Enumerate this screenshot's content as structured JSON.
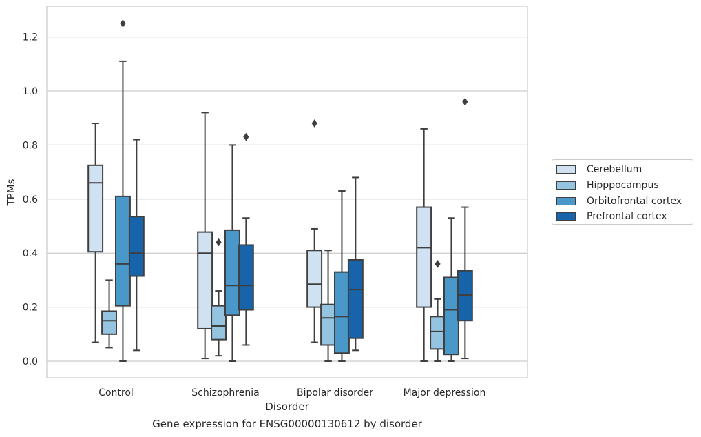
{
  "caption": "Gene expression for ENSG00000130612 by disorder",
  "chart_data": {
    "type": "boxplot",
    "xlabel": "Disorder",
    "ylabel": "TPMs",
    "ylim": [
      -0.06,
      1.3
    ],
    "yticks": [
      0.0,
      0.2,
      0.4,
      0.6,
      0.8,
      1.0,
      1.2
    ],
    "ytick_labels": [
      "0.0",
      "0.2",
      "0.4",
      "0.6",
      "0.8",
      "1.0",
      "1.2"
    ],
    "grid": true,
    "legend_position": "right, outside plot",
    "categories": [
      "Control",
      "Schizophrenia",
      "Bipolar disorder",
      "Major depression"
    ],
    "series": [
      {
        "name": "Cerebellum",
        "color": "#d0e1f2",
        "boxes": [
          {
            "whisker_low": 0.07,
            "q1": 0.405,
            "median": 0.66,
            "q3": 0.725,
            "whisker_high": 0.88,
            "outliers": []
          },
          {
            "whisker_low": 0.01,
            "q1": 0.12,
            "median": 0.4,
            "q3": 0.478,
            "whisker_high": 0.92,
            "outliers": []
          },
          {
            "whisker_low": 0.07,
            "q1": 0.2,
            "median": 0.285,
            "q3": 0.41,
            "whisker_high": 0.49,
            "outliers": [
              0.88
            ]
          },
          {
            "whisker_low": 0.0,
            "q1": 0.2,
            "median": 0.42,
            "q3": 0.57,
            "whisker_high": 0.86,
            "outliers": []
          }
        ]
      },
      {
        "name": "Hipppocampus",
        "color": "#94c4df",
        "boxes": [
          {
            "whisker_low": 0.05,
            "q1": 0.1,
            "median": 0.15,
            "q3": 0.185,
            "whisker_high": 0.3,
            "outliers": []
          },
          {
            "whisker_low": 0.02,
            "q1": 0.08,
            "median": 0.13,
            "q3": 0.205,
            "whisker_high": 0.26,
            "outliers": [
              0.44
            ]
          },
          {
            "whisker_low": 0.0,
            "q1": 0.06,
            "median": 0.16,
            "q3": 0.21,
            "whisker_high": 0.41,
            "outliers": []
          },
          {
            "whisker_low": 0.0,
            "q1": 0.045,
            "median": 0.11,
            "q3": 0.165,
            "whisker_high": 0.23,
            "outliers": [
              0.36
            ]
          }
        ]
      },
      {
        "name": "Orbitofrontal cortex",
        "color": "#4a98c9",
        "boxes": [
          {
            "whisker_low": 0.0,
            "q1": 0.205,
            "median": 0.36,
            "q3": 0.61,
            "whisker_high": 1.11,
            "outliers": [
              1.25
            ]
          },
          {
            "whisker_low": 0.0,
            "q1": 0.17,
            "median": 0.28,
            "q3": 0.485,
            "whisker_high": 0.8,
            "outliers": []
          },
          {
            "whisker_low": 0.0,
            "q1": 0.03,
            "median": 0.165,
            "q3": 0.33,
            "whisker_high": 0.63,
            "outliers": []
          },
          {
            "whisker_low": 0.0,
            "q1": 0.025,
            "median": 0.19,
            "q3": 0.31,
            "whisker_high": 0.53,
            "outliers": []
          }
        ]
      },
      {
        "name": "Prefrontal cortex",
        "color": "#1764ab",
        "boxes": [
          {
            "whisker_low": 0.04,
            "q1": 0.315,
            "median": 0.4,
            "q3": 0.535,
            "whisker_high": 0.82,
            "outliers": []
          },
          {
            "whisker_low": 0.06,
            "q1": 0.19,
            "median": 0.28,
            "q3": 0.43,
            "whisker_high": 0.53,
            "outliers": [
              0.83
            ]
          },
          {
            "whisker_low": 0.04,
            "q1": 0.085,
            "median": 0.265,
            "q3": 0.375,
            "whisker_high": 0.68,
            "outliers": []
          },
          {
            "whisker_low": 0.01,
            "q1": 0.15,
            "median": 0.245,
            "q3": 0.335,
            "whisker_high": 0.57,
            "outliers": [
              0.96
            ]
          }
        ]
      }
    ]
  }
}
